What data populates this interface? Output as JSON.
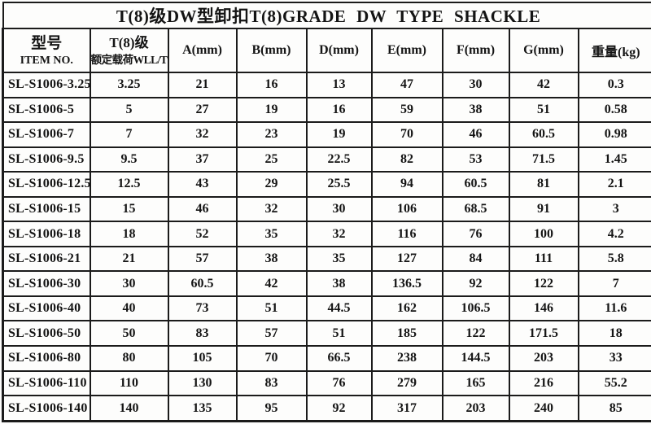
{
  "table": {
    "title_zh": "T(8)级DW型卸扣",
    "title_en": "T(8)GRADE DW TYPE SHACKLE",
    "header": {
      "item_no_zh": "型号",
      "item_no_en": "ITEM NO.",
      "wll_line1": "T(8)级",
      "wll_line2": "额定载荷WLL/T",
      "col_a": "A(mm)",
      "col_b": "B(mm)",
      "col_d": "D(mm)",
      "col_e": "E(mm)",
      "col_f": "F(mm)",
      "col_g": "G(mm)",
      "col_weight": "重量(kg)"
    },
    "rows": [
      [
        "SL-S1006-3.25",
        "3.25",
        "21",
        "16",
        "13",
        "47",
        "30",
        "42",
        "0.3"
      ],
      [
        "SL-S1006-5",
        "5",
        "27",
        "19",
        "16",
        "59",
        "38",
        "51",
        "0.58"
      ],
      [
        "SL-S1006-7",
        "7",
        "32",
        "23",
        "19",
        "70",
        "46",
        "60.5",
        "0.98"
      ],
      [
        "SL-S1006-9.5",
        "9.5",
        "37",
        "25",
        "22.5",
        "82",
        "53",
        "71.5",
        "1.45"
      ],
      [
        "SL-S1006-12.5",
        "12.5",
        "43",
        "29",
        "25.5",
        "94",
        "60.5",
        "81",
        "2.1"
      ],
      [
        "SL-S1006-15",
        "15",
        "46",
        "32",
        "30",
        "106",
        "68.5",
        "91",
        "3"
      ],
      [
        "SL-S1006-18",
        "18",
        "52",
        "35",
        "32",
        "116",
        "76",
        "100",
        "4.2"
      ],
      [
        "SL-S1006-21",
        "21",
        "57",
        "38",
        "35",
        "127",
        "84",
        "111",
        "5.8"
      ],
      [
        "SL-S1006-30",
        "30",
        "60.5",
        "42",
        "38",
        "136.5",
        "92",
        "122",
        "7"
      ],
      [
        "SL-S1006-40",
        "40",
        "73",
        "51",
        "44.5",
        "162",
        "106.5",
        "146",
        "11.6"
      ],
      [
        "SL-S1006-50",
        "50",
        "83",
        "57",
        "51",
        "185",
        "122",
        "171.5",
        "18"
      ],
      [
        "SL-S1006-80",
        "80",
        "105",
        "70",
        "66.5",
        "238",
        "144.5",
        "203",
        "33"
      ],
      [
        "SL-S1006-110",
        "110",
        "130",
        "83",
        "76",
        "279",
        "165",
        "216",
        "55.2"
      ],
      [
        "SL-S1006-140",
        "140",
        "135",
        "95",
        "92",
        "317",
        "203",
        "240",
        "85"
      ]
    ]
  }
}
